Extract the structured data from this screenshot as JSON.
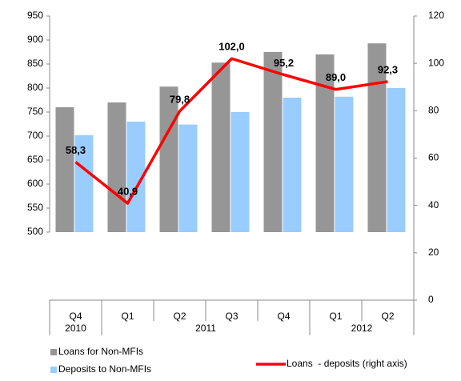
{
  "chart_data": {
    "type": "bar-line",
    "categories": [
      "Q4",
      "Q1",
      "Q2",
      "Q3",
      "Q4",
      "Q1",
      "Q2"
    ],
    "years": [
      "2010",
      "2011",
      "2011",
      "2011",
      "2011",
      "2012",
      "2012"
    ],
    "series": [
      {
        "name": "Loans for Non-MFIs",
        "color": "#969696",
        "type": "bar",
        "values": [
          760,
          770,
          803,
          853,
          875,
          870,
          893
        ]
      },
      {
        "name": "Deposits to Non-MFIs",
        "color": "#99ccff",
        "type": "bar",
        "values": [
          702,
          730,
          724,
          750,
          780,
          782,
          800
        ]
      },
      {
        "name": "Loans  - deposits (right axis)",
        "color": "#ff0000",
        "type": "line",
        "axis": "y2",
        "values": [
          58.3,
          40.9,
          79.8,
          102.0,
          95.2,
          89.0,
          92.3
        ],
        "value_labels": [
          "58,3",
          "40,9",
          "79,8",
          "102,0",
          "95,2",
          "89,0",
          "92,3"
        ]
      }
    ],
    "ylim": [
      500,
      950
    ],
    "yticks": [
      500,
      550,
      600,
      650,
      700,
      750,
      800,
      850,
      900,
      950
    ],
    "y2lim": [
      0,
      120
    ],
    "y2ticks": [
      0,
      20,
      40,
      60,
      80,
      100,
      120
    ],
    "grid": false
  }
}
